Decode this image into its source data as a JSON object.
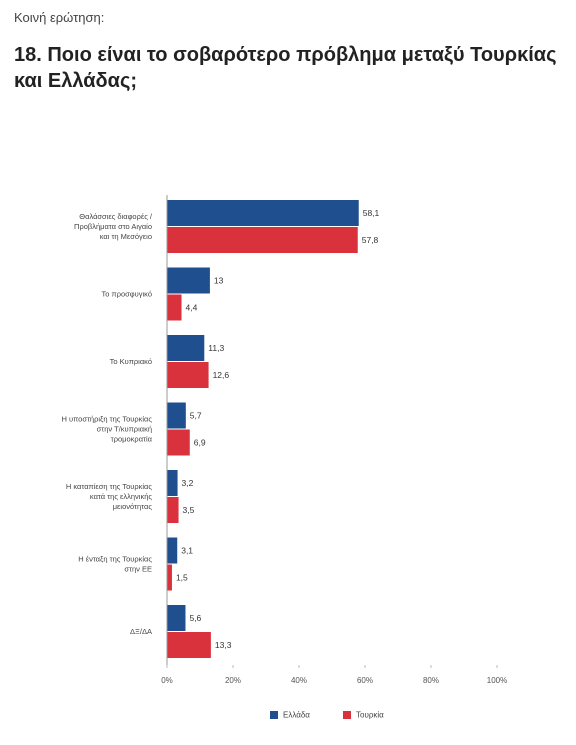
{
  "chart_data": {
    "type": "hbar",
    "kicker": "Κοινή ερώτηση:",
    "title": "18. Ποιο είναι το σοβαρότερο πρόβλημα μεταξύ Τουρκίας και Ελλάδας;",
    "categories": [
      [
        "Θαλάσσιες διαφορές /",
        "Προβλήματα στο Αιγαίο",
        "και τη Μεσόγειο"
      ],
      [
        "Το προσφυγικό"
      ],
      [
        "Το Κυπριακό"
      ],
      [
        "Η υποστήριξη της Τουρκίας",
        "στην Τ/κυπριακή",
        "τρομοκρατία"
      ],
      [
        "Η καταπίεση της Τουρκίας",
        "κατά της ελληνικής",
        "μειονότητας"
      ],
      [
        "Η ένταξη της Τουρκίας",
        "στην ΕΕ"
      ],
      [
        "ΔΞ/ΔΑ"
      ]
    ],
    "series": [
      {
        "name": "Ελλάδα",
        "color": "#1f4f8f",
        "values": [
          58.1,
          13,
          11.3,
          5.7,
          3.2,
          3.1,
          5.6
        ],
        "value_labels": [
          "58,1",
          "13",
          "11,3",
          "5,7",
          "3,2",
          "3,1",
          "5,6"
        ]
      },
      {
        "name": "Τουρκία",
        "color": "#d9323c",
        "values": [
          57.8,
          4.4,
          12.6,
          6.9,
          3.5,
          1.5,
          13.3
        ],
        "value_labels": [
          "57,8",
          "4,4",
          "12,6",
          "6,9",
          "3,5",
          "1,5",
          "13,3"
        ]
      }
    ],
    "xlim": [
      0,
      100
    ],
    "xticks": [
      {
        "value": 0,
        "label": "0%"
      },
      {
        "value": 20,
        "label": "20%"
      },
      {
        "value": 40,
        "label": "40%"
      },
      {
        "value": 60,
        "label": "60%"
      },
      {
        "value": 80,
        "label": "80%"
      },
      {
        "value": 100,
        "label": "100%"
      }
    ],
    "legend": "bottom"
  }
}
